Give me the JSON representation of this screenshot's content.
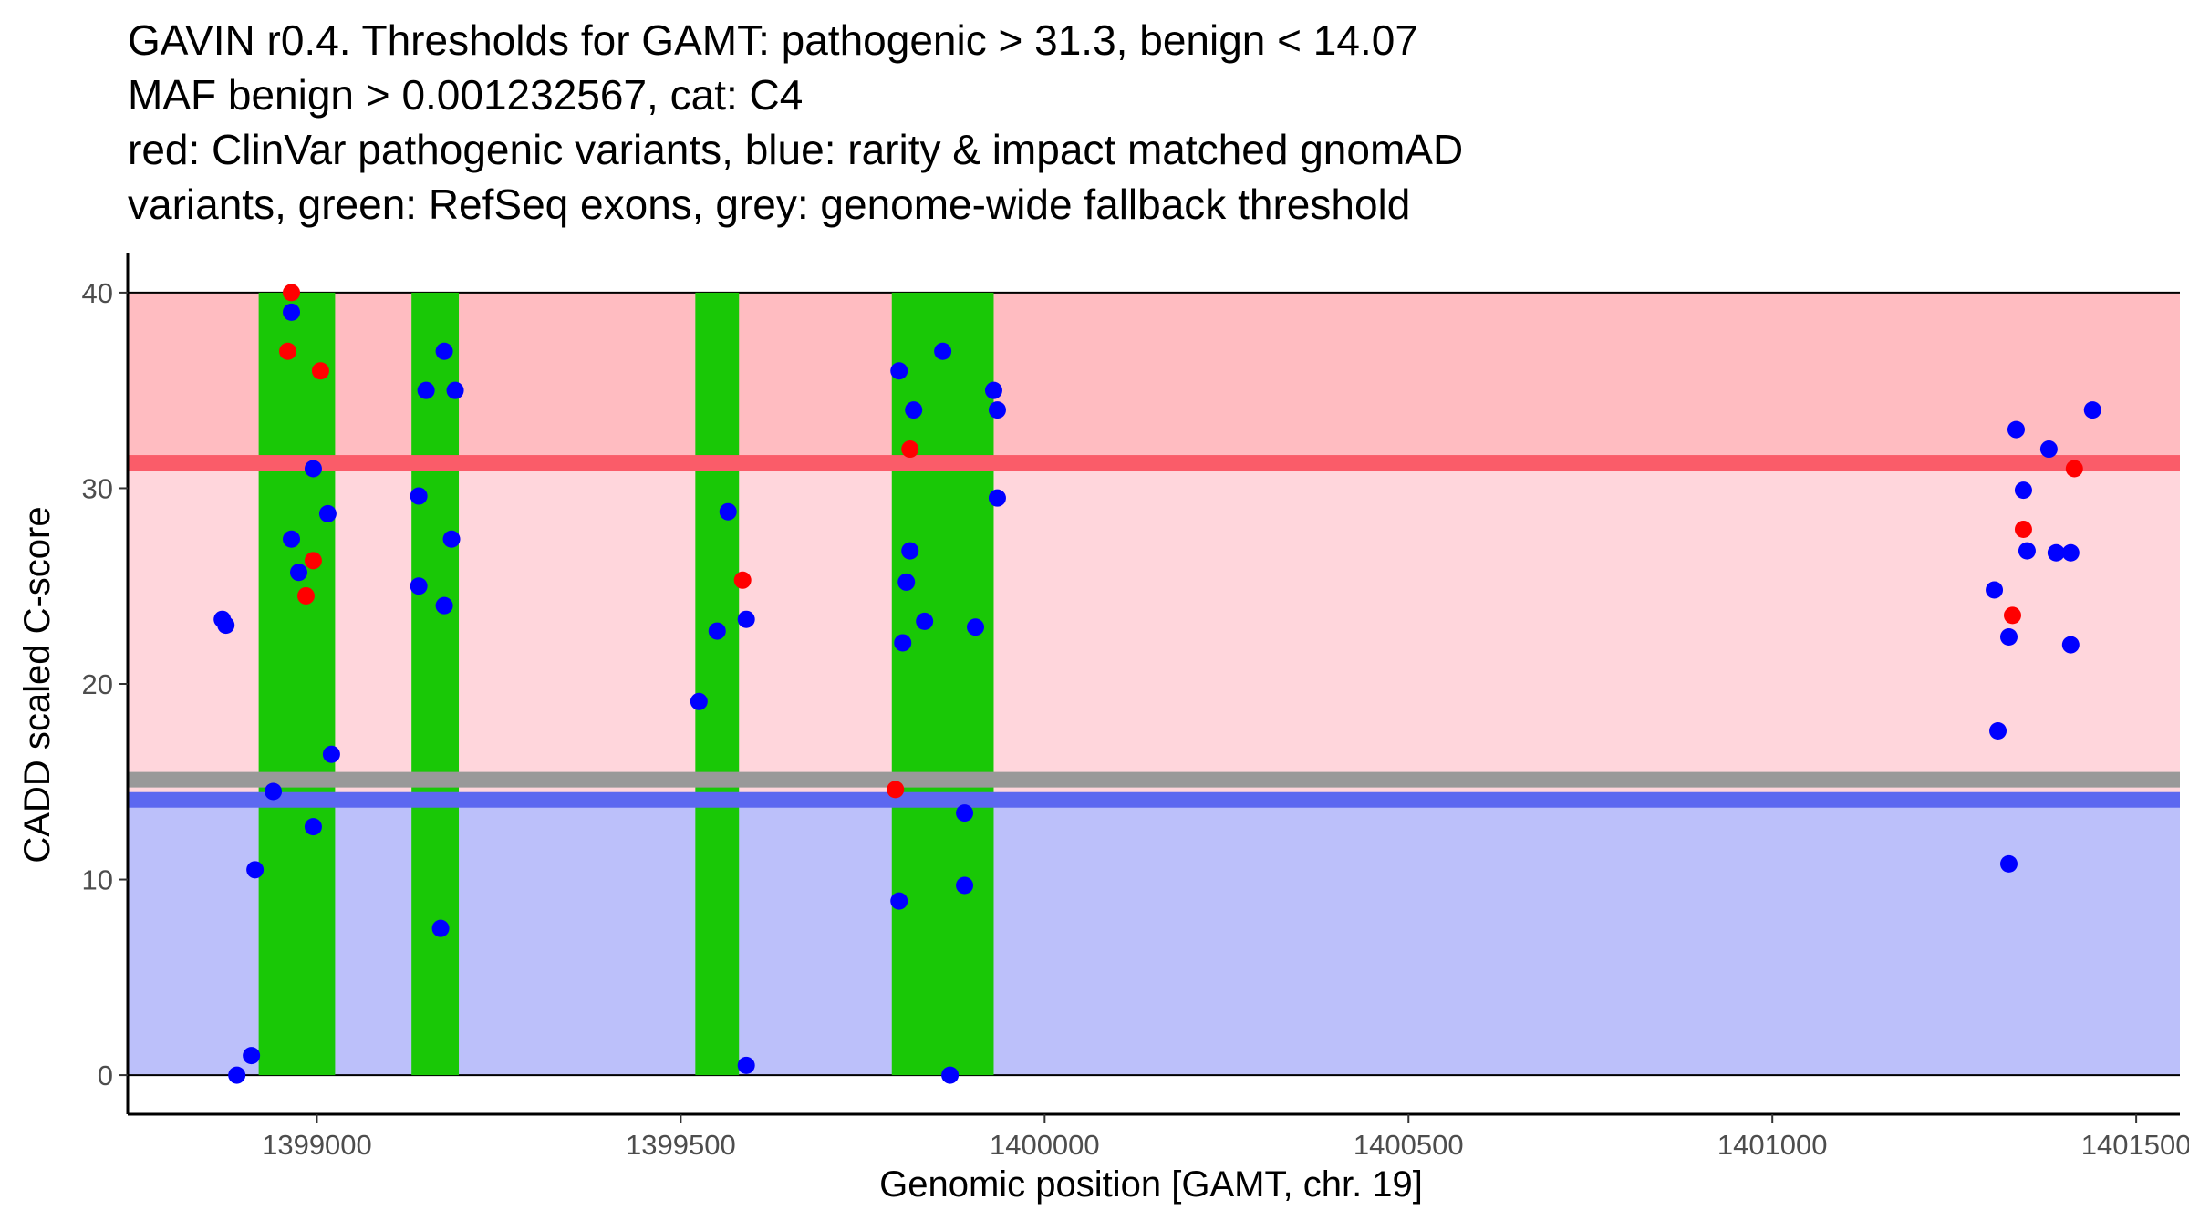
{
  "title_lines": [
    "GAVIN r0.4. Thresholds for GAMT: pathogenic > 31.3, benign < 14.07",
    "MAF benign > 0.001232567, cat: C4",
    "red: ClinVar pathogenic variants, blue: rarity & impact matched gnomAD",
    "variants, green: RefSeq exons, grey: genome-wide fallback threshold"
  ],
  "chart_data": {
    "type": "scatter",
    "title": "GAVIN r0.4. Thresholds for GAMT: pathogenic > 31.3, benign < 14.07 / MAF benign > 0.001232567, cat: C4",
    "xlabel": "Genomic position [GAMT, chr. 19]",
    "ylabel": "CADD scaled C-score",
    "xlim": [
      1398740,
      1401560
    ],
    "ylim": [
      -2,
      42
    ],
    "x_ticks": [
      1399000,
      1399500,
      1400000,
      1400500,
      1401000,
      1401500
    ],
    "y_ticks": [
      0,
      10,
      20,
      30,
      40
    ],
    "grid": false,
    "legend": "none",
    "colors": {
      "pathogenic_region": "#FFBCC1",
      "uncertain_region": "#FFD6DC",
      "benign_region": "#BCC0FA",
      "pathogenic_threshold": "#FA5C69",
      "benign_threshold": "#5C68F0",
      "fallback_threshold": "#999999",
      "exon": "#19C806",
      "clinvar_point": "#FF0000",
      "gnomad_point": "#0000FF"
    },
    "regions": [
      {
        "name": "pathogenic",
        "y": [
          31.3,
          40
        ]
      },
      {
        "name": "uncertain",
        "y": [
          14.07,
          31.3
        ]
      },
      {
        "name": "benign",
        "y": [
          0,
          14.07
        ]
      }
    ],
    "thresholds": [
      {
        "name": "pathogenic",
        "y": 31.3
      },
      {
        "name": "fallback",
        "y": 15.1
      },
      {
        "name": "benign",
        "y": 14.07
      }
    ],
    "exons": [
      {
        "start": 1398920,
        "end": 1399025
      },
      {
        "start": 1399130,
        "end": 1399195
      },
      {
        "start": 1399520,
        "end": 1399580
      },
      {
        "start": 1399790,
        "end": 1399930
      }
    ],
    "series": [
      {
        "name": "ClinVar pathogenic variants",
        "points": [
          [
            1398965,
            40
          ],
          [
            1398960,
            37
          ],
          [
            1399005,
            36
          ],
          [
            1398995,
            26.3
          ],
          [
            1398985,
            24.5
          ],
          [
            1399585,
            25.3
          ],
          [
            1399815,
            32
          ],
          [
            1399795,
            14.6
          ],
          [
            1401330,
            23.5
          ],
          [
            1401345,
            27.9
          ],
          [
            1401415,
            31
          ]
        ]
      },
      {
        "name": "gnomAD matched variants",
        "points": [
          [
            1398870,
            23.3
          ],
          [
            1398875,
            23
          ],
          [
            1398890,
            0
          ],
          [
            1398910,
            1
          ],
          [
            1398915,
            10.5
          ],
          [
            1398940,
            14.5
          ],
          [
            1398965,
            39
          ],
          [
            1398965,
            27.4
          ],
          [
            1398975,
            25.7
          ],
          [
            1398995,
            31
          ],
          [
            1399015,
            28.7
          ],
          [
            1398995,
            12.7
          ],
          [
            1399020,
            16.4
          ],
          [
            1399140,
            29.6
          ],
          [
            1399150,
            35
          ],
          [
            1399175,
            37
          ],
          [
            1399190,
            35
          ],
          [
            1399140,
            25
          ],
          [
            1399175,
            24
          ],
          [
            1399185,
            27.4
          ],
          [
            1399170,
            7.5
          ],
          [
            1399525,
            19.1
          ],
          [
            1399550,
            22.7
          ],
          [
            1399565,
            28.8
          ],
          [
            1399590,
            23.3
          ],
          [
            1399590,
            0.5
          ],
          [
            1399800,
            36
          ],
          [
            1399805,
            22.1
          ],
          [
            1399820,
            34
          ],
          [
            1399810,
            25.2
          ],
          [
            1399815,
            26.8
          ],
          [
            1399835,
            23.2
          ],
          [
            1399800,
            8.9
          ],
          [
            1399860,
            37
          ],
          [
            1399870,
            0
          ],
          [
            1399890,
            13.4
          ],
          [
            1399890,
            9.7
          ],
          [
            1399905,
            22.9
          ],
          [
            1399930,
            35
          ],
          [
            1399935,
            34
          ],
          [
            1399935,
            29.5
          ],
          [
            1401305,
            24.8
          ],
          [
            1401310,
            17.6
          ],
          [
            1401325,
            22.4
          ],
          [
            1401325,
            10.8
          ],
          [
            1401335,
            33
          ],
          [
            1401345,
            29.9
          ],
          [
            1401350,
            26.8
          ],
          [
            1401380,
            32
          ],
          [
            1401390,
            26.7
          ],
          [
            1401410,
            26.7
          ],
          [
            1401410,
            22
          ],
          [
            1401440,
            34
          ]
        ]
      }
    ]
  }
}
